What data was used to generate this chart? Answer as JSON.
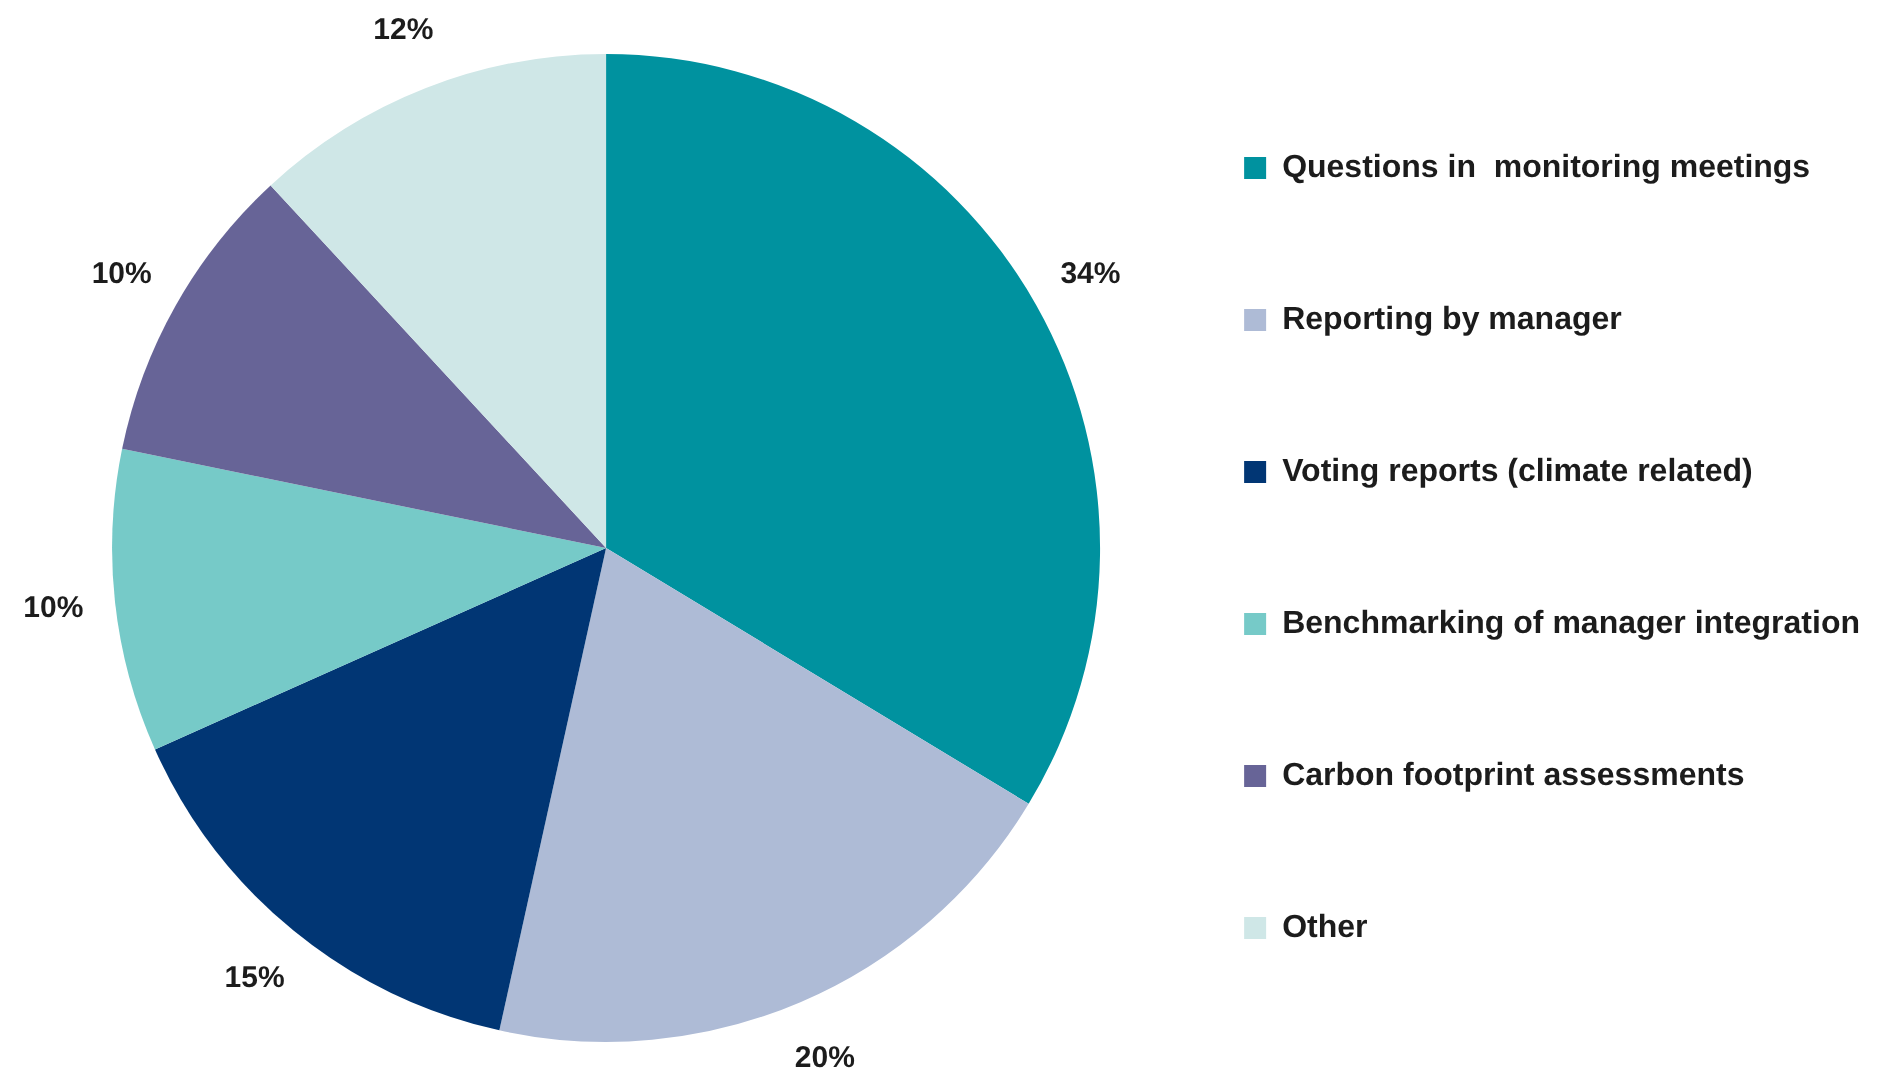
{
  "chart_data": {
    "type": "pie",
    "categories": [
      "Questions in  monitoring meetings",
      "Reporting by manager",
      "Voting reports (climate related)",
      "Benchmarking of manager integration",
      "Carbon footprint assessments",
      "Other"
    ],
    "values": [
      34,
      20,
      15,
      10,
      10,
      12
    ],
    "colors": [
      "#00929f",
      "#aebbd6",
      "#013674",
      "#76cac8",
      "#676497",
      "#cfe7e7"
    ],
    "value_labels": [
      "34%",
      "20%",
      "15%",
      "10%",
      "10%",
      "12%"
    ],
    "legend": "right"
  }
}
